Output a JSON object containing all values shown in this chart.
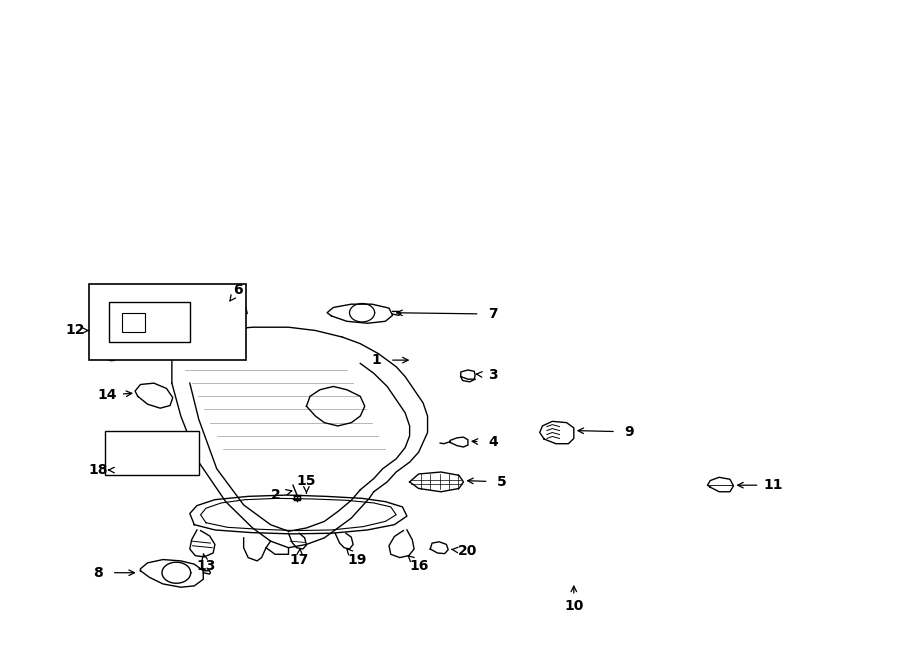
{
  "bg_color": "#ffffff",
  "line_color": "#000000",
  "default_lw": 1.0
}
